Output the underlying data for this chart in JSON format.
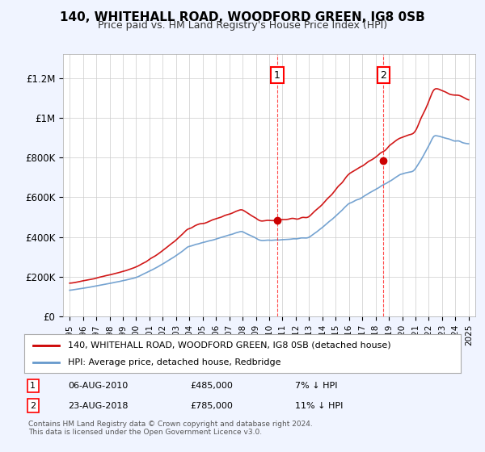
{
  "title": "140, WHITEHALL ROAD, WOODFORD GREEN, IG8 0SB",
  "subtitle": "Price paid vs. HM Land Registry's House Price Index (HPI)",
  "legend_line1": "140, WHITEHALL ROAD, WOODFORD GREEN, IG8 0SB (detached house)",
  "legend_line2": "HPI: Average price, detached house, Redbridge",
  "annotation1_label": "1",
  "annotation1_date": "06-AUG-2010",
  "annotation1_price": "£485,000",
  "annotation1_hpi": "7% ↓ HPI",
  "annotation2_label": "2",
  "annotation2_date": "23-AUG-2018",
  "annotation2_price": "£785,000",
  "annotation2_hpi": "11% ↓ HPI",
  "footnote": "Contains HM Land Registry data © Crown copyright and database right 2024.\nThis data is licensed under the Open Government Licence v3.0.",
  "sale1_x": 2010.6,
  "sale1_y": 485000,
  "sale2_x": 2018.6,
  "sale2_y": 785000,
  "house_color": "#cc0000",
  "hpi_color": "#6699cc",
  "background_color": "#f0f4ff",
  "plot_bg_color": "#ffffff",
  "yticks": [
    0,
    200000,
    400000,
    600000,
    800000,
    1000000,
    1200000
  ],
  "ytick_labels": [
    "£0",
    "£200K",
    "£400K",
    "£600K",
    "£800K",
    "£1M",
    "£1.2M"
  ],
  "xlim": [
    1994.5,
    2025.5
  ],
  "ylim": [
    0,
    1320000
  ]
}
